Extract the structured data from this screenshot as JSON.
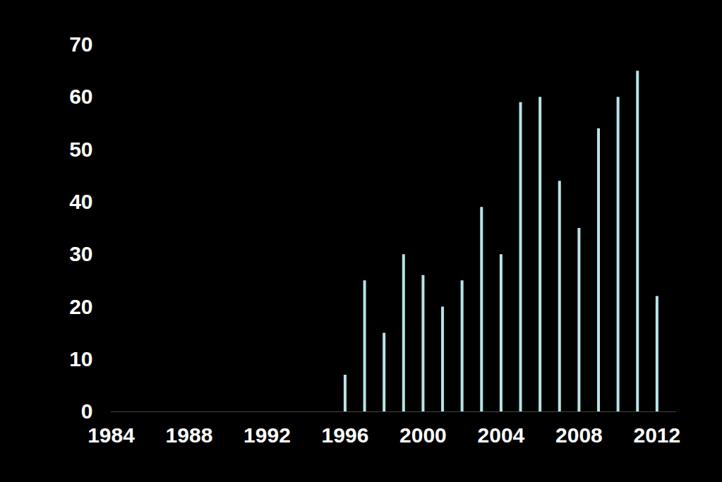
{
  "chart_data": {
    "type": "bar",
    "x": [
      1996,
      1997,
      1998,
      1999,
      2000,
      2001,
      2002,
      2003,
      2004,
      2005,
      2006,
      2007,
      2008,
      2009,
      2010,
      2011,
      2012
    ],
    "values": [
      7,
      25,
      15,
      30,
      26,
      20,
      25,
      39,
      30,
      59,
      60,
      44,
      35,
      54,
      60,
      65,
      22
    ],
    "color": "#b8e4e6",
    "xlim": [
      1984,
      2013
    ],
    "xticks": [
      1984,
      1988,
      1992,
      1996,
      2000,
      2004,
      2008,
      2012
    ],
    "ylim": [
      0,
      70
    ],
    "yticks": [
      0,
      10,
      20,
      30,
      40,
      50,
      60,
      70
    ],
    "grid": false
  }
}
